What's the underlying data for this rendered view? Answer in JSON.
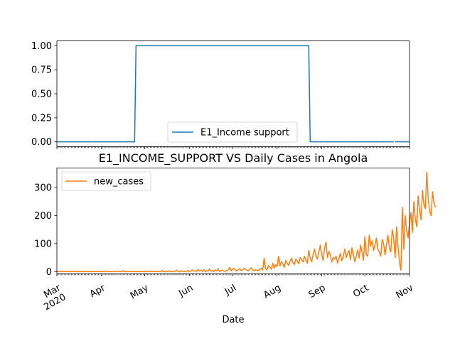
{
  "chart_data": [
    {
      "type": "line",
      "title": "",
      "xlabel": "",
      "ylabel": "",
      "ylim": [
        -0.05,
        1.05
      ],
      "yticks": [
        "0.00",
        "0.25",
        "0.50",
        "0.75",
        "1.00"
      ],
      "xlim": [
        "2020-03-01",
        "2020-11-01"
      ],
      "legend_position": "lower-center",
      "series": [
        {
          "name": "E1_Income support",
          "color": "#1f77b4",
          "points": [
            [
              "2020-03-01",
              0
            ],
            [
              "2020-04-24",
              0
            ],
            [
              "2020-04-25",
              1
            ],
            [
              "2020-08-23",
              1
            ],
            [
              "2020-08-24",
              0
            ],
            [
              "2020-10-21",
              0
            ]
          ],
          "points_after_gap": [
            [
              "2020-10-22",
              0
            ],
            [
              "2020-11-01",
              0
            ]
          ]
        }
      ]
    },
    {
      "type": "line",
      "title": "E1_INCOME_SUPPORT VS Daily Cases in Angola",
      "xlabel": "Date",
      "ylabel": "",
      "ylim": [
        -8,
        370
      ],
      "yticks": [
        "0",
        "100",
        "200",
        "300"
      ],
      "xlim": [
        "2020-03-01",
        "2020-11-01"
      ],
      "xtick_labels": [
        "Mar\n2020",
        "Apr",
        "May",
        "Jun",
        "Jul",
        "Aug",
        "Sep",
        "Oct",
        "Nov"
      ],
      "legend_position": "upper-left",
      "series": [
        {
          "name": "new_cases",
          "color": "#ff7f0e",
          "start_date": "2020-03-01",
          "values": [
            0,
            0,
            0,
            0,
            0,
            0,
            0,
            0,
            0,
            0,
            0,
            0,
            0,
            0,
            0,
            0,
            0,
            0,
            0,
            0,
            0,
            0,
            0,
            0,
            0,
            0,
            0,
            0,
            0,
            0,
            0,
            1,
            0,
            2,
            0,
            1,
            0,
            0,
            0,
            1,
            0,
            0,
            2,
            0,
            0,
            0,
            3,
            0,
            0,
            1,
            0,
            0,
            0,
            0,
            0,
            0,
            0,
            0,
            0,
            0,
            0,
            0,
            1,
            0,
            0,
            2,
            0,
            0,
            0,
            1,
            0,
            0,
            0,
            4,
            0,
            0,
            1,
            0,
            3,
            0,
            0,
            2,
            0,
            5,
            1,
            0,
            3,
            0,
            2,
            0,
            0,
            4,
            0,
            2,
            6,
            1,
            3,
            0,
            8,
            2,
            5,
            1,
            7,
            0,
            3,
            2,
            9,
            1,
            4,
            0,
            6,
            2,
            10,
            0,
            3,
            5,
            2,
            1,
            4,
            6,
            15,
            3,
            8,
            12,
            5,
            2,
            7,
            10,
            4,
            6,
            11,
            8,
            5,
            3,
            9,
            14,
            6,
            2,
            7,
            5,
            3,
            8,
            12,
            5,
            48,
            10,
            6,
            22,
            15,
            8,
            30,
            12,
            25,
            18,
            55,
            20,
            35,
            28,
            15,
            40,
            30,
            22,
            36,
            48,
            32,
            25,
            45,
            38,
            28,
            50,
            42,
            35,
            55,
            40,
            30,
            75,
            48,
            35,
            60,
            80,
            55,
            45,
            70,
            95,
            60,
            40,
            85,
            105,
            50,
            72,
            60,
            35,
            50,
            45,
            55,
            30,
            48,
            65,
            38,
            55,
            80,
            50,
            65,
            75,
            42,
            85,
            60,
            35,
            55,
            78,
            48,
            95,
            70,
            40,
            125,
            60,
            55,
            130,
            90,
            110,
            75,
            95,
            120,
            80,
            70,
            55,
            115,
            100,
            60,
            95,
            130,
            85,
            70,
            150,
            120,
            50,
            160,
            90,
            35,
            5,
            230,
            80,
            200,
            145,
            120,
            175,
            210,
            140,
            250,
            190,
            160,
            270,
            220,
            185,
            290,
            240,
            225,
            355,
            260,
            215,
            200,
            285,
            245,
            230
          ]
        }
      ]
    }
  ]
}
